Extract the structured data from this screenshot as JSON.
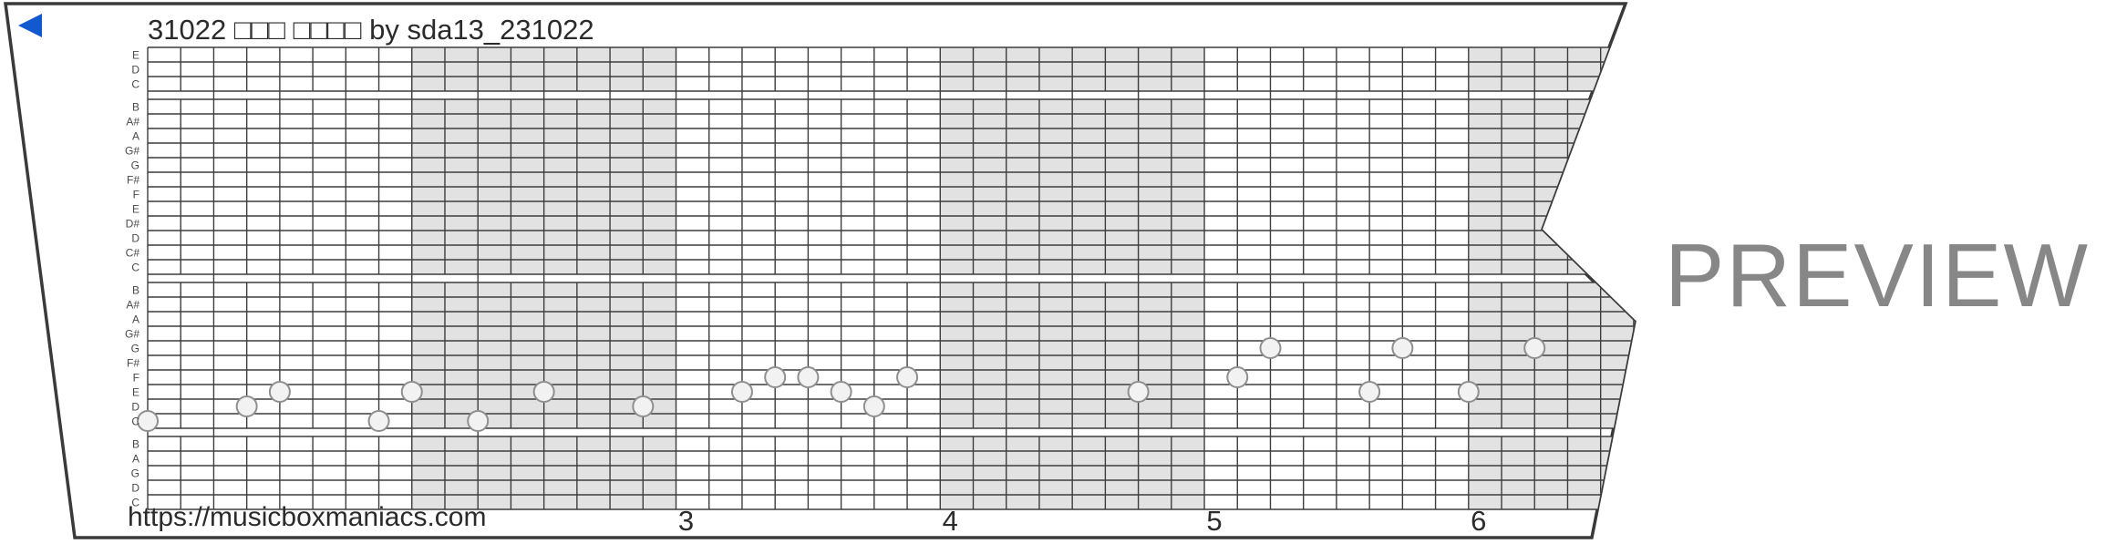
{
  "title": "31022 □□□ □□□□ by sda13_231022",
  "watermark": "PREVIEW",
  "footer": {
    "url": "https://musicboxmaniacs.com"
  },
  "colors": {
    "accent_blue": "#1259d0",
    "shade_gray": "#e2e2e2",
    "grid_line": "#3d3d3d",
    "border": "#3a3a3a",
    "note_fill": "#f2f2f2",
    "note_stroke": "#8f8f8f",
    "watermark_gray": "#878787",
    "text_dark": "#2b2b2b",
    "label_gray": "#4a4a4a"
  },
  "chart_data": {
    "type": "piano-roll",
    "title": "31022 □□□ □□□□ by sda13_231022",
    "row_labels_top_to_bottom": [
      "E",
      "D",
      "C",
      "B",
      "A#",
      "A",
      "G#",
      "G",
      "F#",
      "F",
      "E",
      "D#",
      "D",
      "C#",
      "C",
      "B",
      "A#",
      "A",
      "G#",
      "G",
      "F#",
      "F",
      "E",
      "D",
      "C",
      "B",
      "A",
      "G",
      "D",
      "C"
    ],
    "octave_gap_after_rows": [
      2,
      14,
      24
    ],
    "measures_total": 6,
    "columns_per_measure": 8,
    "shaded_measures": [
      2,
      4,
      6
    ],
    "measure_labels": [
      {
        "text": "3",
        "measure": 3
      },
      {
        "text": "4",
        "measure": 4
      },
      {
        "text": "5",
        "measure": 5
      },
      {
        "text": "6",
        "measure": 6
      }
    ],
    "notes": [
      {
        "col": 0,
        "row": 24,
        "pitch": "C"
      },
      {
        "col": 3,
        "row": 23,
        "pitch": "D"
      },
      {
        "col": 4,
        "row": 22,
        "pitch": "E"
      },
      {
        "col": 7,
        "row": 24,
        "pitch": "C"
      },
      {
        "col": 8,
        "row": 22,
        "pitch": "E"
      },
      {
        "col": 10,
        "row": 24,
        "pitch": "C"
      },
      {
        "col": 12,
        "row": 22,
        "pitch": "E"
      },
      {
        "col": 15,
        "row": 23,
        "pitch": "D"
      },
      {
        "col": 18,
        "row": 22,
        "pitch": "E"
      },
      {
        "col": 19,
        "row": 21,
        "pitch": "F"
      },
      {
        "col": 20,
        "row": 21,
        "pitch": "F"
      },
      {
        "col": 21,
        "row": 22,
        "pitch": "E"
      },
      {
        "col": 22,
        "row": 23,
        "pitch": "D"
      },
      {
        "col": 23,
        "row": 21,
        "pitch": "F"
      },
      {
        "col": 30,
        "row": 22,
        "pitch": "E"
      },
      {
        "col": 33,
        "row": 21,
        "pitch": "F"
      },
      {
        "col": 34,
        "row": 19,
        "pitch": "G"
      },
      {
        "col": 37,
        "row": 22,
        "pitch": "E"
      },
      {
        "col": 38,
        "row": 19,
        "pitch": "G"
      },
      {
        "col": 40,
        "row": 22,
        "pitch": "E"
      },
      {
        "col": 42,
        "row": 19,
        "pitch": "G"
      }
    ]
  }
}
